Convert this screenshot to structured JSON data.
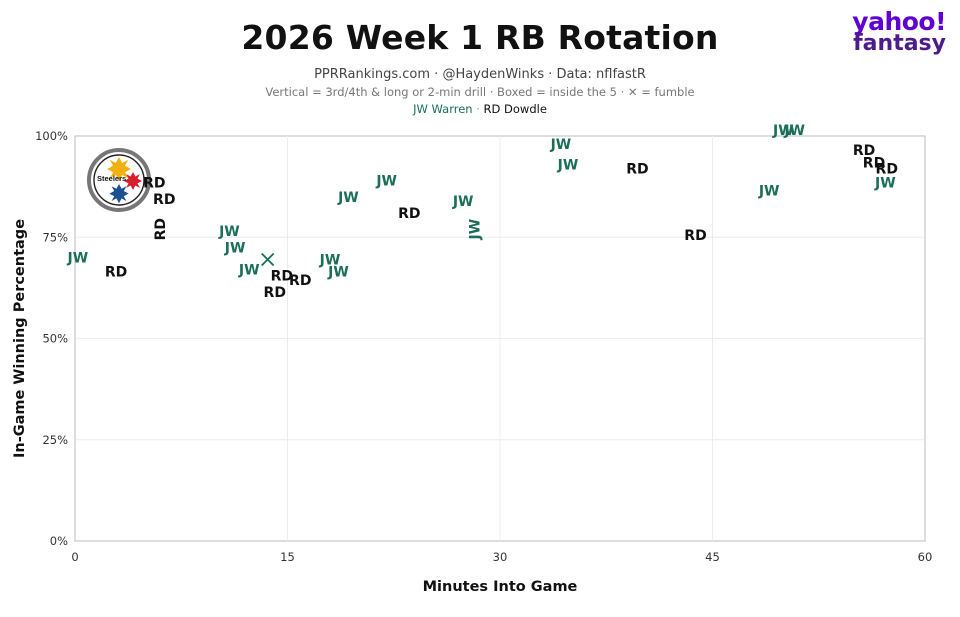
{
  "header": {
    "title": "2026 Week 1 RB Rotation",
    "subtitle": "PPRRankings.com · @HaydenWinks · Data: nflfastR",
    "caption": "Vertical = 3rd/4th & long or 2-min drill · Boxed = inside the 5 · ✕ = fumble",
    "legend_jw": "JW Warren",
    "legend_sep": "·",
    "legend_rd": "RD Dowdle"
  },
  "brand": {
    "line1": "yahoo!",
    "line2": "fantasy",
    "color": "#6001d2"
  },
  "team_logo": {
    "text": "Steelers",
    "icon": "steelers-logo"
  },
  "colors": {
    "jw": "#1b6e58",
    "rd": "#111111",
    "grid": "#ececec",
    "axis": "#bbbbbb"
  },
  "chart_data": {
    "type": "scatter",
    "title": "2026 Week 1 RB Rotation",
    "xlabel": "Minutes Into Game",
    "ylabel": "In-Game Winning Percentage",
    "xlim": [
      0,
      60
    ],
    "ylim": [
      0,
      100
    ],
    "xticks": [
      0,
      15,
      30,
      45,
      60
    ],
    "xtick_labels": [
      "0",
      "15",
      "30",
      "45",
      "60"
    ],
    "yticks": [
      0,
      25,
      50,
      75,
      100
    ],
    "ytick_labels": [
      "0%",
      "25%",
      "50%",
      "75%",
      "100%"
    ],
    "grid": true,
    "series": [
      {
        "name": "JW Warren",
        "code": "JW",
        "points": [
          {
            "x": 0.2,
            "y": 70,
            "label": "JW"
          },
          {
            "x": 10.9,
            "y": 76.5,
            "label": "JW"
          },
          {
            "x": 11.3,
            "y": 72.5,
            "label": "JW"
          },
          {
            "x": 12.3,
            "y": 67,
            "label": "JW"
          },
          {
            "x": 13.6,
            "y": 69.5,
            "fumble": true
          },
          {
            "x": 18.0,
            "y": 69.5,
            "label": "JW"
          },
          {
            "x": 18.6,
            "y": 66.5,
            "label": "JW"
          },
          {
            "x": 19.3,
            "y": 85,
            "label": "JW"
          },
          {
            "x": 22.0,
            "y": 89,
            "label": "JW"
          },
          {
            "x": 27.4,
            "y": 84,
            "label": "JW"
          },
          {
            "x": 28.2,
            "y": 77,
            "label": "JW",
            "vertical": true
          },
          {
            "x": 34.3,
            "y": 98,
            "label": "JW"
          },
          {
            "x": 34.8,
            "y": 93,
            "label": "JW"
          },
          {
            "x": 49.0,
            "y": 86.5,
            "label": "JW"
          },
          {
            "x": 50.0,
            "y": 101.5,
            "label": "JW"
          },
          {
            "x": 50.8,
            "y": 101.5,
            "label": "JW"
          },
          {
            "x": 57.2,
            "y": 88.5,
            "label": "JW"
          }
        ]
      },
      {
        "name": "RD Dowdle",
        "code": "RD",
        "points": [
          {
            "x": 2.9,
            "y": 66.5,
            "label": "RD"
          },
          {
            "x": 5.6,
            "y": 88.5,
            "label": "RD"
          },
          {
            "x": 6.3,
            "y": 84.5,
            "label": "RD"
          },
          {
            "x": 6.0,
            "y": 77,
            "label": "RD",
            "vertical": true
          },
          {
            "x": 14.6,
            "y": 65.5,
            "label": "RD"
          },
          {
            "x": 15.9,
            "y": 64.5,
            "label": "RD"
          },
          {
            "x": 14.1,
            "y": 61.5,
            "label": "RD"
          },
          {
            "x": 23.6,
            "y": 81,
            "label": "RD"
          },
          {
            "x": 39.7,
            "y": 92,
            "label": "RD"
          },
          {
            "x": 43.8,
            "y": 75.5,
            "label": "RD"
          },
          {
            "x": 55.7,
            "y": 96.5,
            "label": "RD"
          },
          {
            "x": 56.4,
            "y": 93.5,
            "label": "RD"
          },
          {
            "x": 57.3,
            "y": 92,
            "label": "RD"
          }
        ]
      }
    ]
  }
}
